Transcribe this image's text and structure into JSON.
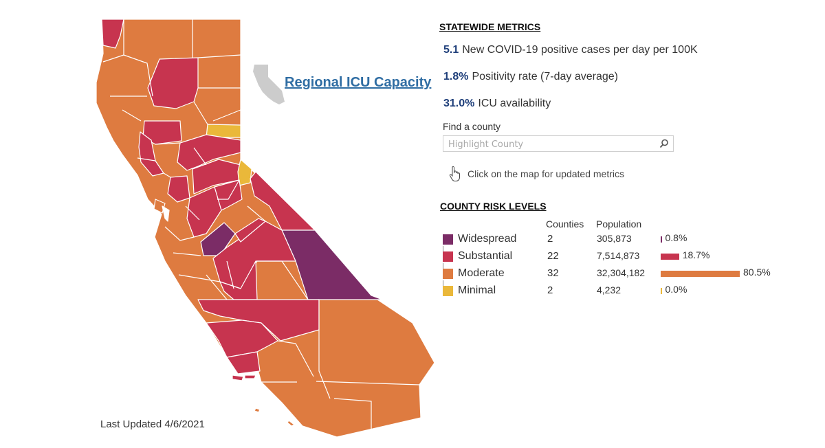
{
  "map": {
    "last_updated": "Last Updated 4/6/2021",
    "icu_link_label": "Regional ICU Capacity"
  },
  "colors": {
    "widespread": "#7b2c66",
    "substantial": "#c7344f",
    "moderate": "#de7b40",
    "minimal": "#eab83a",
    "link": "#2f6da3",
    "metric_value": "#1f3f7a",
    "mini_map": "#cccccc"
  },
  "statewide": {
    "title": "STATEWIDE METRICS",
    "metrics": [
      {
        "value": "5.1",
        "label": "New COVID-19 positive cases per day per 100K"
      },
      {
        "value": "1.8%",
        "label": "Positivity rate (7-day average)"
      },
      {
        "value": "31.0%",
        "label": "ICU availability"
      }
    ]
  },
  "search": {
    "label": "Find a county",
    "placeholder": "Highlight County",
    "icon": "search-icon"
  },
  "hint": {
    "text": "Click on the map for updated metrics",
    "icon": "pointer-hand-icon"
  },
  "risk": {
    "title": "COUNTY RISK LEVELS",
    "col_counties": "Counties",
    "col_population": "Population",
    "levels": [
      {
        "name": "Widespread",
        "counties": "2",
        "population": "305,873",
        "pct_label": "0.8%",
        "pct": 0.8,
        "color": "#7b2c66"
      },
      {
        "name": "Substantial",
        "counties": "22",
        "population": "7,514,873",
        "pct_label": "18.7%",
        "pct": 18.7,
        "color": "#c7344f"
      },
      {
        "name": "Moderate",
        "counties": "32",
        "population": "32,304,182",
        "pct_label": "80.5%",
        "pct": 80.5,
        "color": "#de7b40"
      },
      {
        "name": "Minimal",
        "counties": "2",
        "population": "4,232",
        "pct_label": "0.0%",
        "pct": 0.0,
        "color": "#eab83a"
      }
    ]
  }
}
